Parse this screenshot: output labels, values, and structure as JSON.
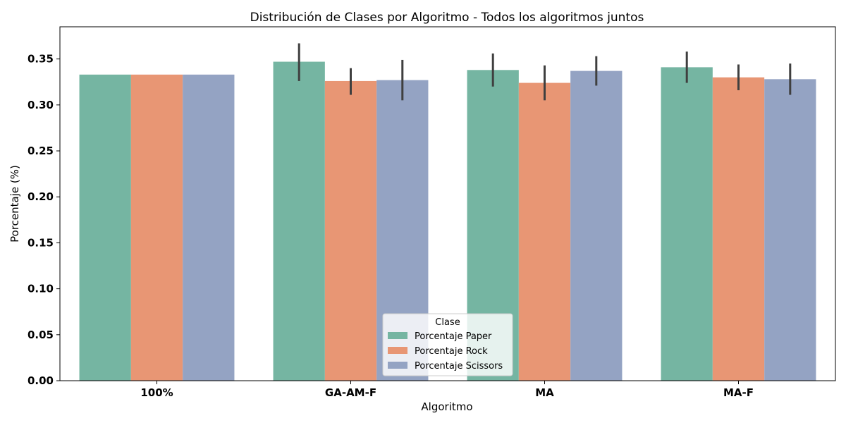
{
  "chart_data": {
    "type": "bar",
    "title": "Distribución de Clases por Algoritmo - Todos los algoritmos juntos",
    "xlabel": "Algoritmo",
    "ylabel": "Porcentaje (%)",
    "categories": [
      "100%",
      "GA-AM-F",
      "MA",
      "MA-F"
    ],
    "ylim": [
      0,
      0.385
    ],
    "yticks": [
      0.0,
      0.05,
      0.1,
      0.15,
      0.2,
      0.25,
      0.3,
      0.35
    ],
    "ytick_labels": [
      "0.00",
      "0.05",
      "0.10",
      "0.15",
      "0.20",
      "0.25",
      "0.30",
      "0.35"
    ],
    "grid": false,
    "legend": {
      "title": "Clase",
      "placement": "lower-center"
    },
    "series": [
      {
        "name": "Porcentaje Paper",
        "color": "#75b5a2",
        "values": [
          0.333,
          0.347,
          0.338,
          0.341
        ],
        "err_low": [
          null,
          0.326,
          0.32,
          0.324
        ],
        "err_high": [
          null,
          0.367,
          0.356,
          0.358
        ]
      },
      {
        "name": "Porcentaje Rock",
        "color": "#e89674",
        "values": [
          0.333,
          0.326,
          0.324,
          0.33
        ],
        "err_low": [
          null,
          0.311,
          0.305,
          0.316
        ],
        "err_high": [
          null,
          0.34,
          0.343,
          0.344
        ]
      },
      {
        "name": "Porcentaje Scissors",
        "color": "#94a3c3",
        "values": [
          0.333,
          0.327,
          0.337,
          0.328
        ],
        "err_low": [
          null,
          0.305,
          0.321,
          0.311
        ],
        "err_high": [
          null,
          0.349,
          0.353,
          0.345
        ]
      }
    ]
  }
}
